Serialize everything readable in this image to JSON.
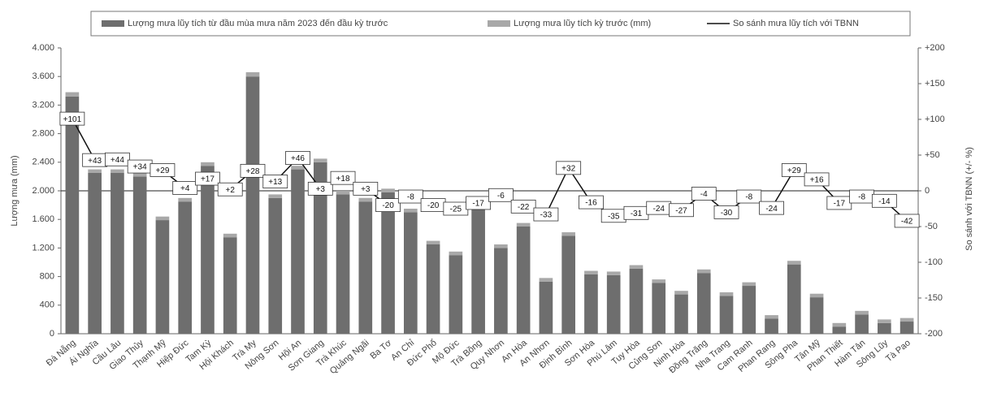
{
  "chart_data": {
    "type": "bar",
    "y_label": "Lượng mưa (mm)",
    "y2_label": "So sánh với TBNN (+/- %)",
    "categories": [
      "Đà Nẵng",
      "Ái Nghĩa",
      "Cầu Lâu",
      "Giao Thủy",
      "Thạnh Mỹ",
      "Hiệp Đức",
      "Tam Kỳ",
      "Hội Khách",
      "Trà My",
      "Nông Sơn",
      "Hội An",
      "Sơn Giang",
      "Trà Khúc",
      "Quảng Ngãi",
      "Ba Tơ",
      "An Chỉ",
      "Đức Phổ",
      "Mộ Đức",
      "Trà Bồng",
      "Quy Nhơn",
      "An Hòa",
      "An Nhơn",
      "Định Bình",
      "Sơn Hòa",
      "Phú Lâm",
      "Tuy Hòa",
      "Củng Sơn",
      "Ninh Hòa",
      "Đồng Trăng",
      "Nha Trang",
      "Cam Ranh",
      "Phan Rang",
      "Sông Pha",
      "Tân Mỹ",
      "Phan Thiết",
      "Hàm Tân",
      "Sông Lũy",
      "Tà Pao"
    ],
    "series": [
      {
        "name": "Lượng mưa lũy tích từ đầu mùa mưa năm 2023 đến đầu kỳ trước",
        "color": "#6e6e6e",
        "values": [
          3320,
          2250,
          2250,
          2200,
          1590,
          1850,
          2350,
          1350,
          3600,
          1900,
          2300,
          2400,
          1950,
          1850,
          1980,
          1700,
          1250,
          1100,
          1800,
          1200,
          1500,
          730,
          1370,
          830,
          820,
          910,
          710,
          550,
          850,
          530,
          670,
          210,
          970,
          510,
          100,
          270,
          150,
          170
        ]
      },
      {
        "name": "Lượng mưa lũy tích kỳ trước (mm)",
        "color": "#a8a8a8",
        "values": [
          60,
          50,
          50,
          50,
          50,
          50,
          50,
          50,
          60,
          50,
          50,
          50,
          50,
          50,
          50,
          50,
          50,
          50,
          50,
          50,
          50,
          50,
          50,
          50,
          50,
          50,
          50,
          50,
          50,
          50,
          50,
          50,
          50,
          50,
          50,
          50,
          50,
          50
        ]
      },
      {
        "name": "So sánh mưa lũy tích với TBNN",
        "color": "#111111",
        "type": "line",
        "axis": "y2",
        "values": [
          101,
          43,
          44,
          34,
          29,
          4,
          17,
          2,
          28,
          13,
          46,
          3,
          18,
          3,
          -20,
          -8,
          -20,
          -25,
          -17,
          -6,
          -22,
          -33,
          32,
          -16,
          -35,
          -31,
          -24,
          -27,
          -4,
          -30,
          -8,
          -24,
          29,
          16,
          -17,
          -8,
          -14,
          -42
        ],
        "value_labels": [
          "+101",
          "+43",
          "+44",
          "+34",
          "+29",
          "+4",
          "+17",
          "+2",
          "+28",
          "+13",
          "+46",
          "+3",
          "+18",
          "+3",
          "-20",
          "-8",
          "-20",
          "-25",
          "-17",
          "-6",
          "-22",
          "-33",
          "+32",
          "-16",
          "-35",
          "-31",
          "-24",
          "-27",
          "-4",
          "-30",
          "-8",
          "-24",
          "+29",
          "+16",
          "-17",
          "-8",
          "-14",
          "-42"
        ]
      }
    ],
    "ylim": [
      0,
      4000
    ],
    "yticks": [
      0,
      400,
      800,
      {
        "value": 1200,
        "label": "1.200"
      },
      {
        "value": 1600,
        "label": "1.600"
      },
      {
        "value": 2000,
        "label": "2.000"
      },
      {
        "value": 2400,
        "label": "2.400"
      },
      {
        "value": 2800,
        "label": "2.800"
      },
      {
        "value": 3200,
        "label": "3.200"
      },
      {
        "value": 3600,
        "label": "3.600"
      },
      {
        "value": 4000,
        "label": "4.000"
      }
    ],
    "y2lim": [
      -200,
      200
    ],
    "y2ticks": [
      -200,
      -150,
      -100,
      -50,
      0,
      {
        "value": 50,
        "label": "+50"
      },
      {
        "value": 100,
        "label": "+100"
      },
      {
        "value": 150,
        "label": "+150"
      },
      {
        "value": 200,
        "label": "+200"
      }
    ],
    "legend": "top"
  }
}
